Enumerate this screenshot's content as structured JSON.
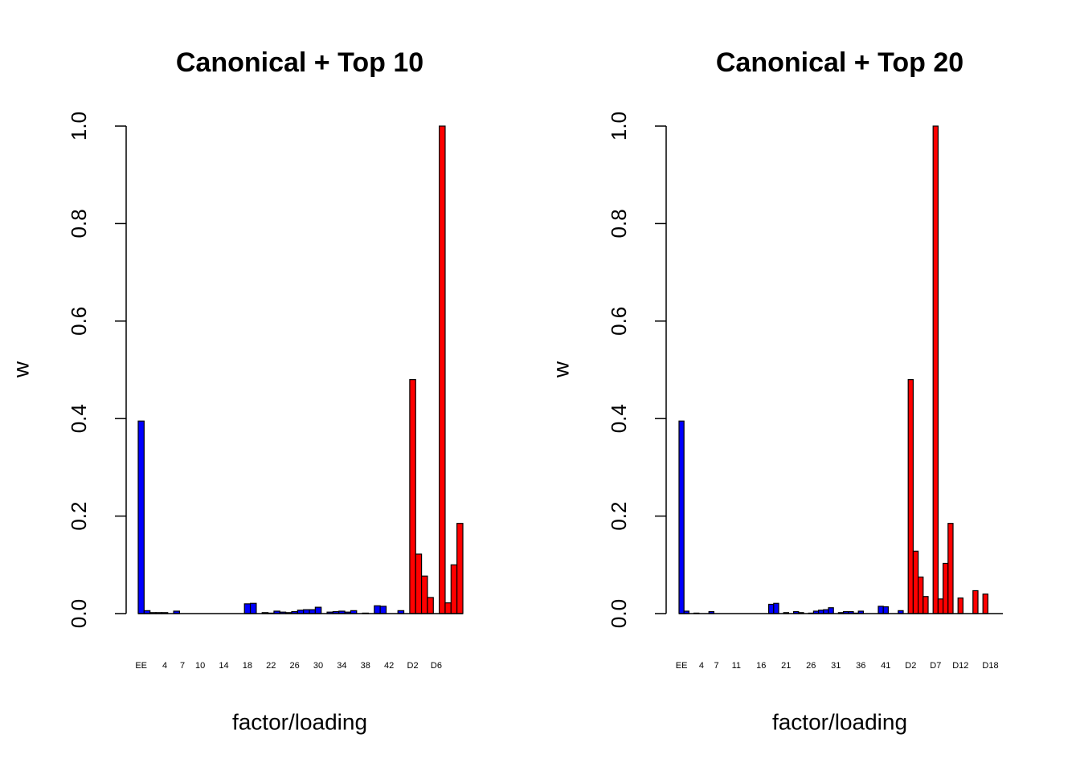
{
  "chart_data": [
    {
      "type": "bar",
      "title": "Canonical + Top 10",
      "xlabel": "factor/loading",
      "ylabel": "w",
      "categories": [
        "EE",
        null,
        null,
        null,
        "4",
        null,
        null,
        "7",
        null,
        null,
        "10",
        null,
        null,
        null,
        "14",
        null,
        null,
        null,
        "18",
        null,
        null,
        null,
        "22",
        null,
        null,
        null,
        "26",
        null,
        null,
        null,
        "30",
        null,
        null,
        null,
        "34",
        null,
        null,
        null,
        "38",
        null,
        null,
        null,
        "42",
        null,
        null,
        null,
        "D2",
        null,
        null,
        null,
        "D6",
        null,
        null,
        null,
        null
      ],
      "values": [
        0.395,
        0.006,
        0.002,
        0.002,
        0.002,
        0,
        0.005,
        0,
        0,
        0,
        0,
        0,
        0,
        0,
        0,
        0,
        0,
        0,
        0.02,
        0.021,
        0,
        0.002,
        0.001,
        0.005,
        0.003,
        0.002,
        0.004,
        0.007,
        0.008,
        0.008,
        0.013,
        0,
        0.003,
        0.004,
        0.005,
        0.003,
        0.006,
        0,
        0.001,
        0,
        0.016,
        0.015,
        0,
        0,
        0.006,
        0,
        0.48,
        0.122,
        0.077,
        0.033,
        0,
        1,
        0.022,
        0.1,
        0.185
      ],
      "colors": [
        "#0000ff",
        "#0000ff",
        "#0000ff",
        "#0000ff",
        "#0000ff",
        "#0000ff",
        "#0000ff",
        "#0000ff",
        "#0000ff",
        "#0000ff",
        "#0000ff",
        "#0000ff",
        "#0000ff",
        "#0000ff",
        "#0000ff",
        "#0000ff",
        "#0000ff",
        "#0000ff",
        "#0000ff",
        "#0000ff",
        "#0000ff",
        "#0000ff",
        "#0000ff",
        "#0000ff",
        "#0000ff",
        "#0000ff",
        "#0000ff",
        "#0000ff",
        "#0000ff",
        "#0000ff",
        "#0000ff",
        "#0000ff",
        "#0000ff",
        "#0000ff",
        "#0000ff",
        "#0000ff",
        "#0000ff",
        "#0000ff",
        "#0000ff",
        "#0000ff",
        "#0000ff",
        "#0000ff",
        "#0000ff",
        "#0000ff",
        "#0000ff",
        "#ff0000",
        "#ff0000",
        "#ff0000",
        "#ff0000",
        "#ff0000",
        "#ff0000",
        "#ff0000",
        "#ff0000",
        "#ff0000",
        "#ff0000"
      ],
      "ylim": [
        0,
        1
      ],
      "yticks": [
        {
          "value": 0,
          "label": "0.0"
        },
        {
          "value": 0.2,
          "label": "0.2"
        },
        {
          "value": 0.4,
          "label": "0.4"
        },
        {
          "value": 0.6,
          "label": "0.6"
        },
        {
          "value": 0.8,
          "label": "0.8"
        },
        {
          "value": 1,
          "label": "1.0"
        }
      ]
    },
    {
      "type": "bar",
      "title": "Canonical + Top 20",
      "xlabel": "factor/loading",
      "ylabel": "w",
      "categories": [
        "EE",
        null,
        null,
        null,
        "4",
        null,
        null,
        "7",
        null,
        null,
        null,
        "11",
        null,
        null,
        null,
        null,
        "16",
        null,
        null,
        null,
        null,
        "21",
        null,
        null,
        null,
        null,
        "26",
        null,
        null,
        null,
        null,
        "31",
        null,
        null,
        null,
        null,
        "36",
        null,
        null,
        null,
        null,
        "41",
        null,
        null,
        null,
        null,
        "D2",
        null,
        null,
        null,
        null,
        "D7",
        null,
        null,
        null,
        null,
        "D12",
        null,
        null,
        null,
        null,
        null,
        "D18",
        null,
        null
      ],
      "values": [
        0.395,
        0.005,
        0,
        0.001,
        0,
        0,
        0.004,
        0,
        0,
        0,
        0,
        0,
        0,
        0,
        0,
        0,
        0,
        0,
        0.019,
        0.021,
        0,
        0.002,
        0,
        0.004,
        0.002,
        0,
        0.001,
        0.005,
        0.007,
        0.008,
        0.012,
        0,
        0.002,
        0.004,
        0.004,
        0.001,
        0.005,
        0,
        0,
        0,
        0.015,
        0.014,
        0,
        0,
        0.006,
        0,
        0.48,
        0.128,
        0.075,
        0.035,
        0,
        1,
        0.03,
        0.103,
        0.185,
        0,
        0.032,
        0,
        0,
        0.047,
        0,
        0.04,
        0,
        0,
        0
      ],
      "colors": [
        "#0000ff",
        "#0000ff",
        "#0000ff",
        "#0000ff",
        "#0000ff",
        "#0000ff",
        "#0000ff",
        "#0000ff",
        "#0000ff",
        "#0000ff",
        "#0000ff",
        "#0000ff",
        "#0000ff",
        "#0000ff",
        "#0000ff",
        "#0000ff",
        "#0000ff",
        "#0000ff",
        "#0000ff",
        "#0000ff",
        "#0000ff",
        "#0000ff",
        "#0000ff",
        "#0000ff",
        "#0000ff",
        "#0000ff",
        "#0000ff",
        "#0000ff",
        "#0000ff",
        "#0000ff",
        "#0000ff",
        "#0000ff",
        "#0000ff",
        "#0000ff",
        "#0000ff",
        "#0000ff",
        "#0000ff",
        "#0000ff",
        "#0000ff",
        "#0000ff",
        "#0000ff",
        "#0000ff",
        "#0000ff",
        "#0000ff",
        "#0000ff",
        "#ff0000",
        "#ff0000",
        "#ff0000",
        "#ff0000",
        "#ff0000",
        "#ff0000",
        "#ff0000",
        "#ff0000",
        "#ff0000",
        "#ff0000",
        "#ff0000",
        "#ff0000",
        "#ff0000",
        "#ff0000",
        "#ff0000",
        "#ff0000",
        "#ff0000",
        "#ff0000",
        "#ff0000",
        "#ff0000"
      ],
      "ylim": [
        0,
        1
      ],
      "yticks": [
        {
          "value": 0,
          "label": "0.0"
        },
        {
          "value": 0.2,
          "label": "0.2"
        },
        {
          "value": 0.4,
          "label": "0.4"
        },
        {
          "value": 0.6,
          "label": "0.6"
        },
        {
          "value": 0.8,
          "label": "0.8"
        },
        {
          "value": 1,
          "label": "1.0"
        }
      ]
    }
  ]
}
